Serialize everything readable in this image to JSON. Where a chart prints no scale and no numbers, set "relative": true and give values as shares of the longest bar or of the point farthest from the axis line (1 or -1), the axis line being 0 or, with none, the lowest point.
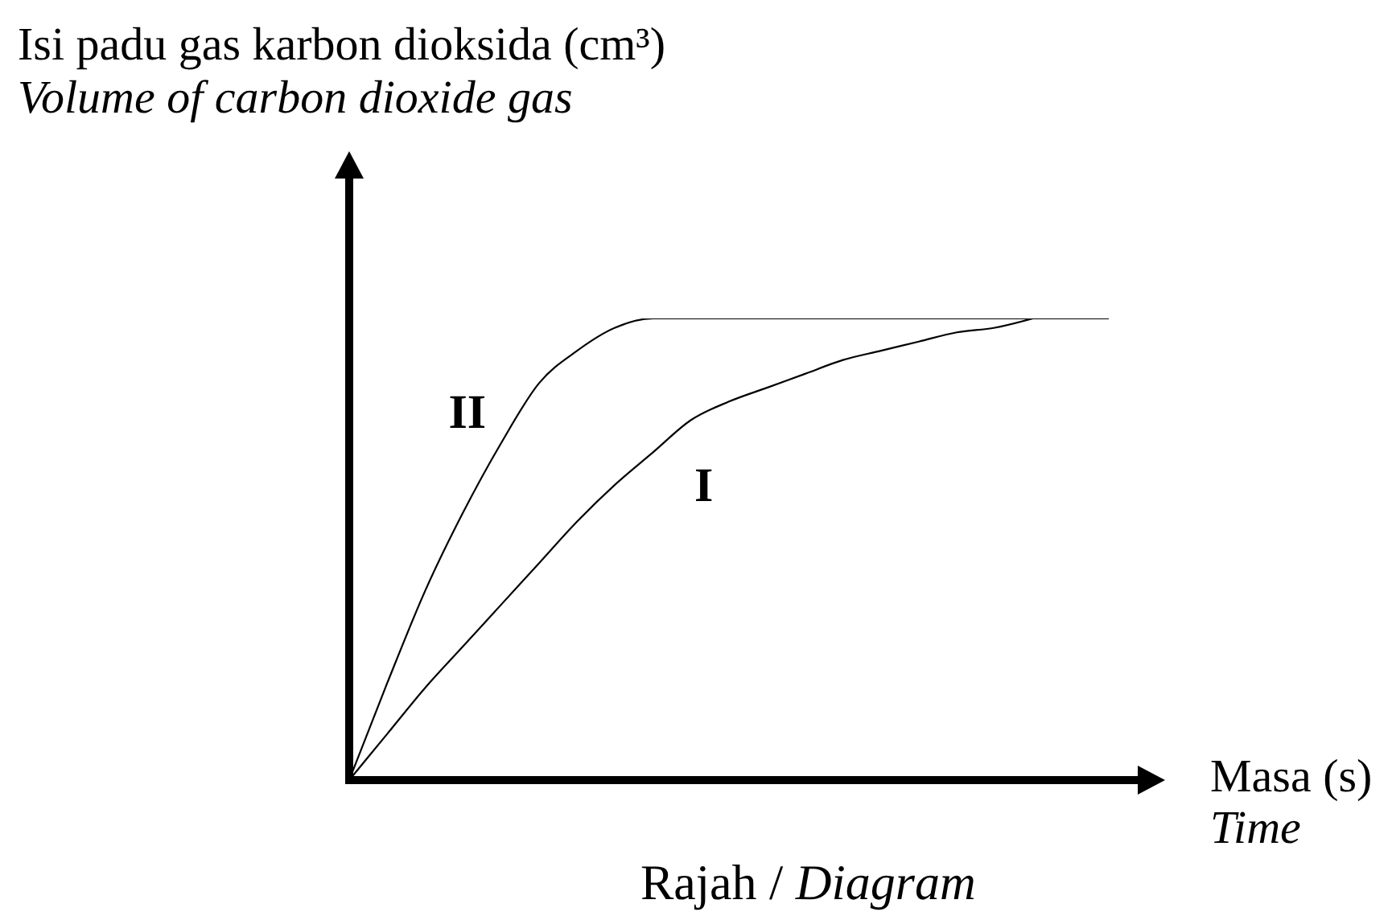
{
  "chart_data": {
    "type": "line",
    "relative": true,
    "ylabel": "Isi padu gas karbon dioksida (cm³)\nVolume of carbon dioxide gas",
    "xlabel": "Masa (s)\nTime",
    "annotations": [
      "Rajah / Diagram"
    ],
    "categories": [
      null,
      null,
      null,
      null,
      null,
      null,
      null,
      null,
      null,
      null,
      null,
      null,
      null,
      null,
      null,
      null,
      null,
      null,
      null,
      null,
      null
    ],
    "series": [
      {
        "name": "I",
        "color": "#000000",
        "values": [
          0,
          0.1,
          0.2,
          0.29,
          0.38,
          0.47,
          0.56,
          0.64,
          0.71,
          0.78,
          0.82,
          0.85,
          0.88,
          0.91,
          0.93,
          0.95,
          0.97,
          0.98,
          1,
          null,
          null
        ]
      },
      {
        "name": "II",
        "color": "#000000",
        "values": [
          0,
          0.21,
          0.41,
          0.58,
          0.73,
          0.86,
          0.93,
          0.98,
          1,
          1,
          1,
          1,
          1,
          1,
          1,
          1,
          1,
          1,
          1,
          1,
          1
        ]
      }
    ]
  }
}
